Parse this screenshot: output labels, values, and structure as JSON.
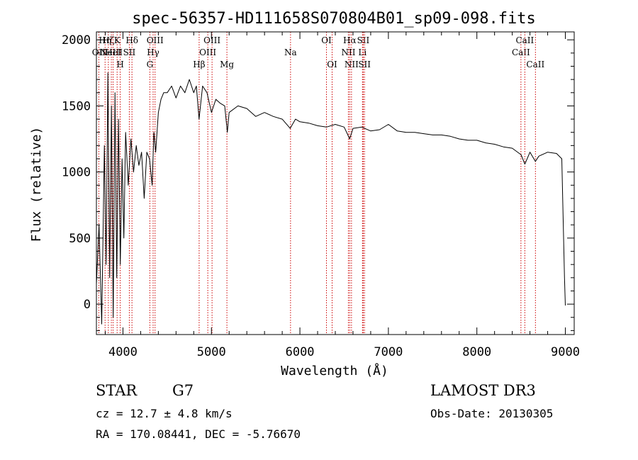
{
  "chart_data": {
    "type": "line",
    "title": "spec-56357-HD111658S070804B01_sp09-098.fits",
    "xlabel": "Wavelength (Å)",
    "ylabel": "Flux (relative)",
    "xlim": [
      3700,
      9100
    ],
    "ylim": [
      -230,
      2060
    ],
    "xticks": [
      4000,
      5000,
      6000,
      7000,
      8000,
      9000
    ],
    "yticks": [
      0,
      500,
      1000,
      1500,
      2000
    ],
    "grid": false,
    "series": [
      {
        "x": [
          3700,
          3730,
          3760,
          3790,
          3810,
          3830,
          3850,
          3870,
          3890,
          3910,
          3930,
          3950,
          3970,
          3990,
          4010,
          4030,
          4060,
          4090,
          4120,
          4150,
          4180,
          4210,
          4240,
          4270,
          4300,
          4330,
          4350,
          4370,
          4400,
          4430,
          4460,
          4500,
          4550,
          4600,
          4650,
          4700,
          4750,
          4800,
          4830,
          4860,
          4900,
          4950,
          5000,
          5050,
          5100,
          5150,
          5180,
          5200,
          5300,
          5400,
          5500,
          5600,
          5700,
          5800,
          5890,
          5950,
          6000,
          6100,
          6200,
          6300,
          6400,
          6500,
          6563,
          6600,
          6700,
          6800,
          6900,
          7000,
          7100,
          7200,
          7300,
          7400,
          7500,
          7600,
          7700,
          7800,
          7900,
          8000,
          8100,
          8200,
          8300,
          8400,
          8500,
          8542,
          8600,
          8662,
          8700,
          8800,
          8900,
          8960,
          8990,
          9000
        ],
        "y": [
          150,
          600,
          -150,
          1200,
          300,
          1750,
          200,
          1500,
          -100,
          1600,
          200,
          1400,
          300,
          1100,
          500,
          1300,
          900,
          1250,
          1000,
          1200,
          1050,
          1150,
          800,
          1150,
          1100,
          900,
          1300,
          1150,
          1450,
          1550,
          1600,
          1600,
          1650,
          1560,
          1650,
          1600,
          1700,
          1600,
          1650,
          1400,
          1650,
          1600,
          1450,
          1550,
          1520,
          1500,
          1300,
          1450,
          1500,
          1480,
          1420,
          1450,
          1420,
          1400,
          1330,
          1400,
          1380,
          1370,
          1350,
          1340,
          1360,
          1340,
          1250,
          1330,
          1340,
          1310,
          1320,
          1360,
          1310,
          1300,
          1300,
          1290,
          1280,
          1280,
          1270,
          1250,
          1240,
          1240,
          1220,
          1210,
          1190,
          1180,
          1130,
          1060,
          1150,
          1080,
          1120,
          1150,
          1140,
          1100,
          200,
          -10
        ]
      }
    ],
    "line_markers": [
      {
        "w": 3727,
        "label": "OII",
        "row": 2
      },
      {
        "w": 3798,
        "label": "Hη",
        "row": 1
      },
      {
        "w": 3835,
        "label": "Hζ",
        "row": 1
      },
      {
        "w": 3869,
        "label": "NeIII",
        "row": 2
      },
      {
        "w": 3889,
        "label": "HeI",
        "row": 2
      },
      {
        "w": 3934,
        "label": "K",
        "row": 1
      },
      {
        "w": 3969,
        "label": "H",
        "row": 3
      },
      {
        "w": 4072,
        "label": "SII",
        "row": 2
      },
      {
        "w": 4102,
        "label": "Hδ",
        "row": 1
      },
      {
        "w": 4304,
        "label": "G",
        "row": 3
      },
      {
        "w": 4341,
        "label": "Hγ",
        "row": 2
      },
      {
        "w": 4363,
        "label": "OIII",
        "row": 1
      },
      {
        "w": 4861,
        "label": "Hβ",
        "row": 3
      },
      {
        "w": 4959,
        "label": "OIII",
        "row": 2
      },
      {
        "w": 5007,
        "label": "OIII",
        "row": 1
      },
      {
        "w": 5175,
        "label": "Mg",
        "row": 3
      },
      {
        "w": 5894,
        "label": "Na",
        "row": 2
      },
      {
        "w": 6300,
        "label": "OI",
        "row": 1
      },
      {
        "w": 6364,
        "label": "OI",
        "row": 3
      },
      {
        "w": 6548,
        "label": "NII",
        "row": 2
      },
      {
        "w": 6563,
        "label": "Hα",
        "row": 1
      },
      {
        "w": 6583,
        "label": "NII",
        "row": 3
      },
      {
        "w": 6707,
        "label": "Li",
        "row": 2
      },
      {
        "w": 6716,
        "label": "SII",
        "row": 1
      },
      {
        "w": 6730,
        "label": "SII",
        "row": 3
      },
      {
        "w": 8498,
        "label": "CaII",
        "row": 2
      },
      {
        "w": 8542,
        "label": "CaII",
        "row": 1
      },
      {
        "w": 8662,
        "label": "CaII",
        "row": 3
      }
    ]
  },
  "footer": {
    "class_label": "STAR",
    "subclass": "G7",
    "survey": "LAMOST DR3",
    "redshift": "cz = 12.7 ± 4.8 km/s",
    "obs_date": "Obs-Date: 20130305",
    "coords": "RA = 170.08441, DEC =  -5.76670"
  },
  "colors": {
    "spectrum": "#000000",
    "marker_line": "#cc0000",
    "axes": "#000000"
  }
}
